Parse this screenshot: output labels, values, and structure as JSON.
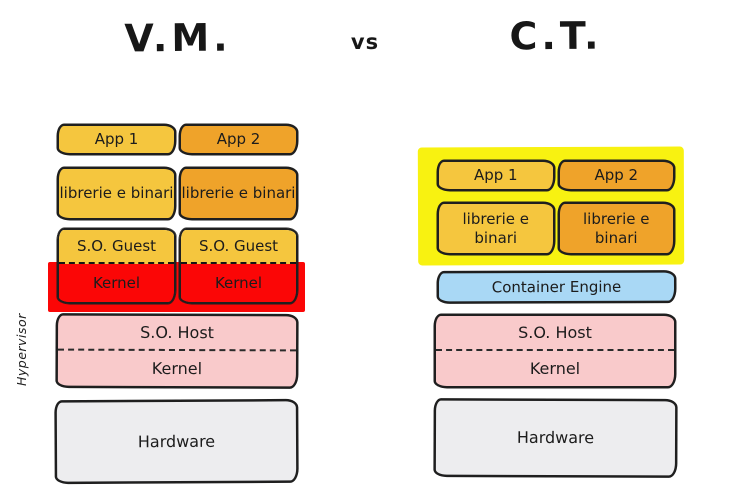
{
  "vs_label": "vs",
  "vm": {
    "title": "V.M.",
    "apps": [
      "App 1",
      "App 2"
    ],
    "libs": [
      "librerie e binari",
      "librerie e binari"
    ],
    "guest_os": [
      "S.O. Guest",
      "S.O. Guest"
    ],
    "guest_kernels": [
      "Kernel",
      "Kernel"
    ],
    "host": {
      "os": "S.O. Host",
      "kernel": "Kernel"
    },
    "hypervisor": "Hypervisor",
    "hardware": "Hardware"
  },
  "ct": {
    "title": "C.T.",
    "apps": [
      "App 1",
      "App 2"
    ],
    "libs": [
      "librerie e binari",
      "librerie e binari"
    ],
    "engine": "Container Engine",
    "host": {
      "os": "S.O. Host",
      "kernel": "Kernel"
    },
    "hardware": "Hardware"
  },
  "colors": {
    "golden": "#F5C63E",
    "orange": "#EFA32A",
    "yellow_highlight": "#F8F211",
    "red_highlight": "#FB0606",
    "pink": "#F9CACB",
    "blue": "#A9D8F5",
    "gray": "#EDEDEF",
    "ink": "#1F1F1F"
  }
}
